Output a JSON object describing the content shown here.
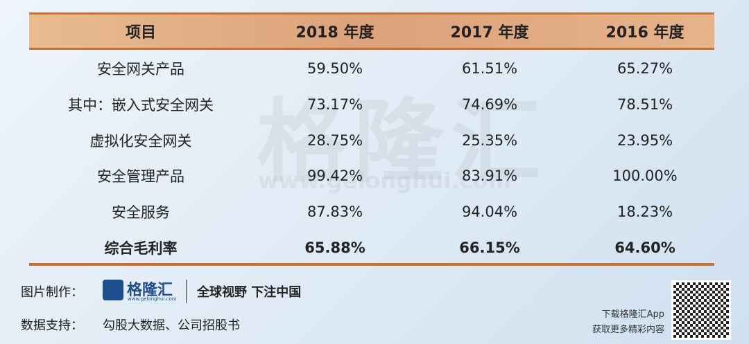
{
  "table": {
    "header": [
      "项目",
      "2018 年度",
      "2017 年度",
      "2016 年度"
    ],
    "rows": [
      [
        "安全网关产品",
        "59.50%",
        "61.51%",
        "65.27%"
      ],
      [
        "其中：嵌入式安全网关",
        "73.17%",
        "74.69%",
        "78.51%"
      ],
      [
        "虚拟化安全网关",
        "28.75%",
        "25.35%",
        "23.95%"
      ],
      [
        "安全管理产品",
        "99.42%",
        "83.91%",
        "100.00%"
      ],
      [
        "安全服务",
        "87.83%",
        "94.04%",
        "18.23%"
      ],
      [
        "综合毛利率",
        "65.88%",
        "66.15%",
        "64.60%"
      ]
    ]
  },
  "watermark": {
    "logo": "格隆汇",
    "url": "www.gelonghui.com"
  },
  "footer": {
    "made_by_label": "图片制作：",
    "logo": "格隆汇",
    "logo_url": "www.gelonghui.com",
    "slogan": "全球视野 下注中国",
    "source_label": "数据支持：",
    "source": "勾股大数据、公司招股书",
    "app_line1": "下载格隆汇App",
    "app_line2": "获取更多精彩内容"
  }
}
